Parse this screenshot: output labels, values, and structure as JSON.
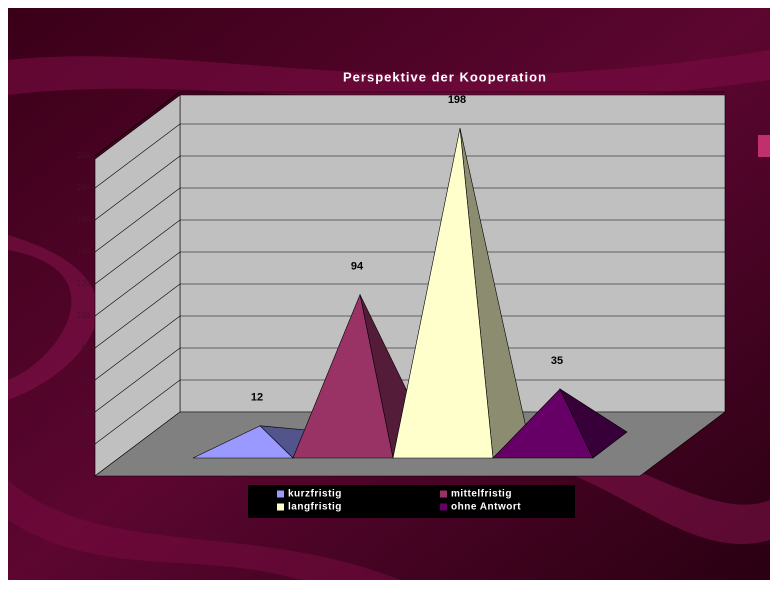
{
  "chart_data": {
    "type": "pyramid3d",
    "title": "Perspektive der Kooperation",
    "categories": [
      "kurzfristig",
      "mittelfristig",
      "langfristig",
      "ohne Antwort"
    ],
    "values": [
      12,
      94,
      198,
      35
    ],
    "colors": [
      "#9999ff",
      "#993366",
      "#ffffcc",
      "#660066"
    ],
    "ylim": [
      0,
      200
    ],
    "yticks": [
      0,
      20,
      40,
      60,
      80,
      100,
      120,
      140,
      160,
      180,
      200
    ],
    "grid": true
  }
}
